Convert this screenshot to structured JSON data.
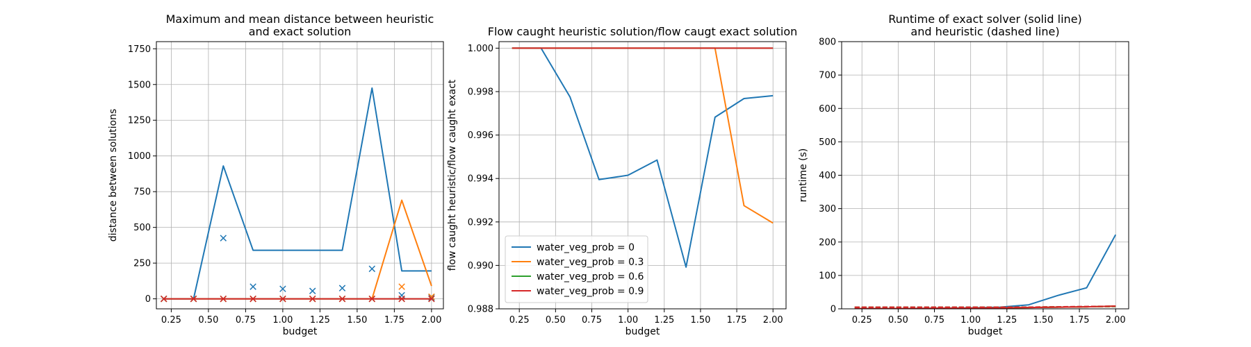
{
  "chart_data": [
    {
      "type": "line",
      "title_lines": [
        "Maximum and mean distance between heuristic",
        "and exact solution"
      ],
      "xlabel": "budget",
      "ylabel": "distance between solutions",
      "xlim": [
        0.15,
        2.08
      ],
      "ylim": [
        -70,
        1800
      ],
      "xticks": [
        0.25,
        0.5,
        0.75,
        1.0,
        1.25,
        1.5,
        1.75,
        2.0
      ],
      "xtick_labels": [
        "0.25",
        "0.50",
        "0.75",
        "1.00",
        "1.25",
        "1.50",
        "1.75",
        "2.00"
      ],
      "yticks": [
        0,
        250,
        500,
        750,
        1000,
        1250,
        1500,
        1750
      ],
      "ytick_labels": [
        "0",
        "250",
        "500",
        "750",
        "1000",
        "1250",
        "1500",
        "1750"
      ],
      "grid": true,
      "x": [
        0.2,
        0.4,
        0.6,
        0.8,
        1.0,
        1.2,
        1.4,
        1.6,
        1.8,
        2.0
      ],
      "series": [
        {
          "color": "#1f77b4",
          "style": "solid",
          "values": [
            0,
            0,
            930,
            340,
            340,
            340,
            340,
            1475,
            195,
            195
          ]
        },
        {
          "color": "#1f77b4",
          "style": "marker-x",
          "values": [
            0,
            0,
            425,
            85,
            70,
            55,
            75,
            210,
            25,
            10
          ]
        },
        {
          "color": "#ff7f0e",
          "style": "solid",
          "values": [
            0,
            0,
            0,
            0,
            0,
            0,
            0,
            0,
            690,
            90
          ]
        },
        {
          "color": "#ff7f0e",
          "style": "marker-x",
          "values": [
            0,
            0,
            0,
            0,
            0,
            0,
            0,
            0,
            85,
            15
          ]
        },
        {
          "color": "#2ca02c",
          "style": "solid",
          "values": [
            0,
            0,
            0,
            0,
            0,
            0,
            0,
            0,
            0,
            0
          ]
        },
        {
          "color": "#2ca02c",
          "style": "marker-x",
          "values": [
            0,
            0,
            0,
            0,
            0,
            0,
            0,
            0,
            0,
            0
          ]
        },
        {
          "color": "#d62728",
          "style": "solid",
          "values": [
            0,
            0,
            0,
            0,
            0,
            0,
            0,
            0,
            0,
            0
          ]
        },
        {
          "color": "#d62728",
          "style": "marker-x",
          "values": [
            0,
            0,
            0,
            0,
            0,
            0,
            0,
            0,
            0,
            0
          ]
        }
      ]
    },
    {
      "type": "line",
      "title_lines": [
        "Flow caught heuristic solution/flow caugt exact solution"
      ],
      "xlabel": "budget",
      "ylabel": "flow caught heuristic/flow caught exact",
      "xlim": [
        0.11,
        2.09
      ],
      "ylim": [
        0.988,
        1.0003
      ],
      "xticks": [
        0.25,
        0.5,
        0.75,
        1.0,
        1.25,
        1.5,
        1.75,
        2.0
      ],
      "xtick_labels": [
        "0.25",
        "0.50",
        "0.75",
        "1.00",
        "1.25",
        "1.50",
        "1.75",
        "2.00"
      ],
      "yticks": [
        0.988,
        0.99,
        0.992,
        0.994,
        0.996,
        0.998,
        1.0
      ],
      "ytick_labels": [
        "0.988",
        "0.990",
        "0.992",
        "0.994",
        "0.996",
        "0.998",
        "1.000"
      ],
      "grid": true,
      "legend_position": "lower-left",
      "x": [
        0.2,
        0.4,
        0.6,
        0.8,
        1.0,
        1.2,
        1.4,
        1.6,
        1.8,
        2.0
      ],
      "series": [
        {
          "name": "water_veg_prob = 0",
          "color": "#1f77b4",
          "style": "solid",
          "values": [
            1.0,
            1.0,
            0.99775,
            0.99395,
            0.99415,
            0.99485,
            0.98992,
            0.99682,
            0.99768,
            0.99781
          ]
        },
        {
          "name": "water_veg_prob = 0.3",
          "color": "#ff7f0e",
          "style": "solid",
          "values": [
            1.0,
            1.0,
            1.0,
            1.0,
            1.0,
            1.0,
            1.0,
            1.0,
            0.99275,
            0.99195
          ]
        },
        {
          "name": "water_veg_prob = 0.6",
          "color": "#2ca02c",
          "style": "solid",
          "values": [
            1.0,
            1.0,
            1.0,
            1.0,
            1.0,
            1.0,
            1.0,
            1.0,
            1.0,
            1.0
          ]
        },
        {
          "name": "water_veg_prob = 0.9",
          "color": "#d62728",
          "style": "solid",
          "values": [
            1.0,
            1.0,
            1.0,
            1.0,
            1.0,
            1.0,
            1.0,
            1.0,
            1.0,
            1.0
          ]
        }
      ]
    },
    {
      "type": "line",
      "title_lines": [
        "Runtime of exact solver (solid line)",
        "and heuristic (dashed line)"
      ],
      "xlabel": "budget",
      "ylabel": "runtime (s)",
      "xlim": [
        0.11,
        2.09
      ],
      "ylim": [
        0,
        800
      ],
      "xticks": [
        0.25,
        0.5,
        0.75,
        1.0,
        1.25,
        1.5,
        1.75,
        2.0
      ],
      "xtick_labels": [
        "0.25",
        "0.50",
        "0.75",
        "1.00",
        "1.25",
        "1.50",
        "1.75",
        "2.00"
      ],
      "yticks": [
        0,
        100,
        200,
        300,
        400,
        500,
        600,
        700,
        800
      ],
      "ytick_labels": [
        "0",
        "100",
        "200",
        "300",
        "400",
        "500",
        "600",
        "700",
        "800"
      ],
      "grid": true,
      "x": [
        0.2,
        0.4,
        0.6,
        0.8,
        1.0,
        1.2,
        1.4,
        1.6,
        1.8,
        2.0
      ],
      "series": [
        {
          "color": "#1f77b4",
          "style": "solid",
          "values": [
            1,
            1,
            1,
            2,
            3,
            5,
            12,
            40,
            63,
            222
          ]
        },
        {
          "color": "#1f77b4",
          "style": "dashed",
          "values": [
            5,
            5,
            5,
            5,
            5,
            5,
            5,
            5,
            6,
            7
          ]
        },
        {
          "color": "#ff7f0e",
          "style": "solid",
          "values": [
            1,
            1,
            1,
            1,
            2,
            3,
            4,
            5,
            6,
            8
          ]
        },
        {
          "color": "#ff7f0e",
          "style": "dashed",
          "values": [
            5,
            5,
            5,
            5,
            5,
            5,
            5,
            6,
            6,
            7
          ]
        },
        {
          "color": "#2ca02c",
          "style": "solid",
          "values": [
            1,
            1,
            1,
            1,
            2,
            3,
            4,
            5,
            6,
            8
          ]
        },
        {
          "color": "#2ca02c",
          "style": "dashed",
          "values": [
            5,
            5,
            5,
            5,
            5,
            5,
            5,
            6,
            6,
            7
          ]
        },
        {
          "color": "#d62728",
          "style": "solid",
          "values": [
            1,
            1,
            1,
            2,
            2,
            3,
            4,
            5,
            6,
            8
          ]
        },
        {
          "color": "#d62728",
          "style": "dashed",
          "values": [
            5,
            5,
            5,
            5,
            5,
            5,
            5,
            6,
            7,
            8
          ]
        }
      ]
    }
  ]
}
